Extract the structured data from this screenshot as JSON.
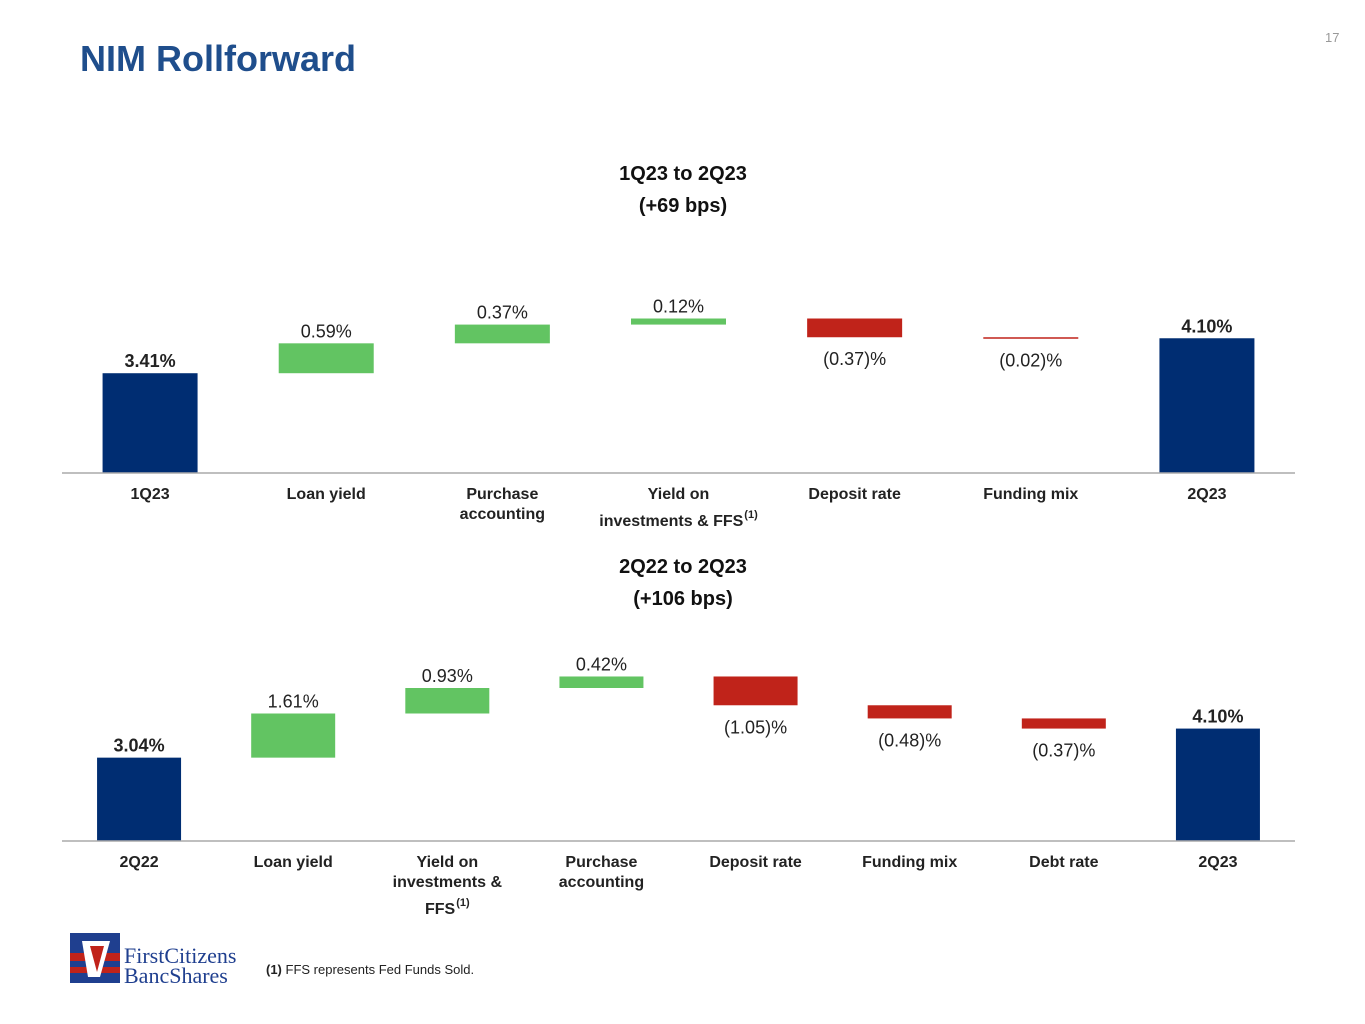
{
  "title": "NIM Rollforward",
  "page_number": "17",
  "logo": {
    "line1": "FirstCitizens",
    "line2": "BancShares"
  },
  "footnote": {
    "mark": "(1)",
    "text": "FFS represents Fed Funds Sold."
  },
  "chart_data": [
    {
      "type": "waterfall",
      "title": "1Q23 to 2Q23",
      "subtitle": "(+69 bps)",
      "categories": [
        "1Q23",
        "Loan yield",
        "Purchase\naccounting",
        "Yield on\ninvestments & FFS",
        "Deposit rate",
        "Funding mix",
        "2Q23"
      ],
      "category_marks": [
        null,
        null,
        null,
        "(1)",
        null,
        null,
        null
      ],
      "values": [
        3.41,
        0.59,
        0.37,
        0.12,
        -0.37,
        -0.02,
        4.1
      ],
      "value_labels": [
        "3.41%",
        "0.59%",
        "0.37%",
        "0.12%",
        "(0.37)%",
        "(0.02)%",
        "4.10%"
      ],
      "colors": [
        "#002d72",
        "#62c462",
        "#62c462",
        "#62c462",
        "#c0231a",
        "#c0231a",
        "#002d72"
      ],
      "ylim": [
        1.44,
        4.5
      ]
    },
    {
      "type": "waterfall",
      "title": "2Q22 to 2Q23",
      "subtitle": "(+106 bps)",
      "categories": [
        "2Q22",
        "Loan yield",
        "Yield on\ninvestments &\nFFS",
        "Purchase\naccounting",
        "Deposit rate",
        "Funding mix",
        "Debt rate",
        "2Q23"
      ],
      "category_marks": [
        null,
        null,
        "(1)",
        null,
        null,
        null,
        null,
        null
      ],
      "values": [
        3.04,
        1.61,
        0.93,
        0.42,
        -1.05,
        -0.48,
        -0.37,
        4.1
      ],
      "value_labels": [
        "3.04%",
        "1.61%",
        "0.93%",
        "0.42%",
        "(1.05)%",
        "(0.48)%",
        "(0.37)%",
        "4.10%"
      ],
      "colors": [
        "#002d72",
        "#62c462",
        "#62c462",
        "#62c462",
        "#c0231a",
        "#c0231a",
        "#c0231a",
        "#002d72"
      ],
      "ylim": [
        0,
        6.2
      ]
    }
  ]
}
